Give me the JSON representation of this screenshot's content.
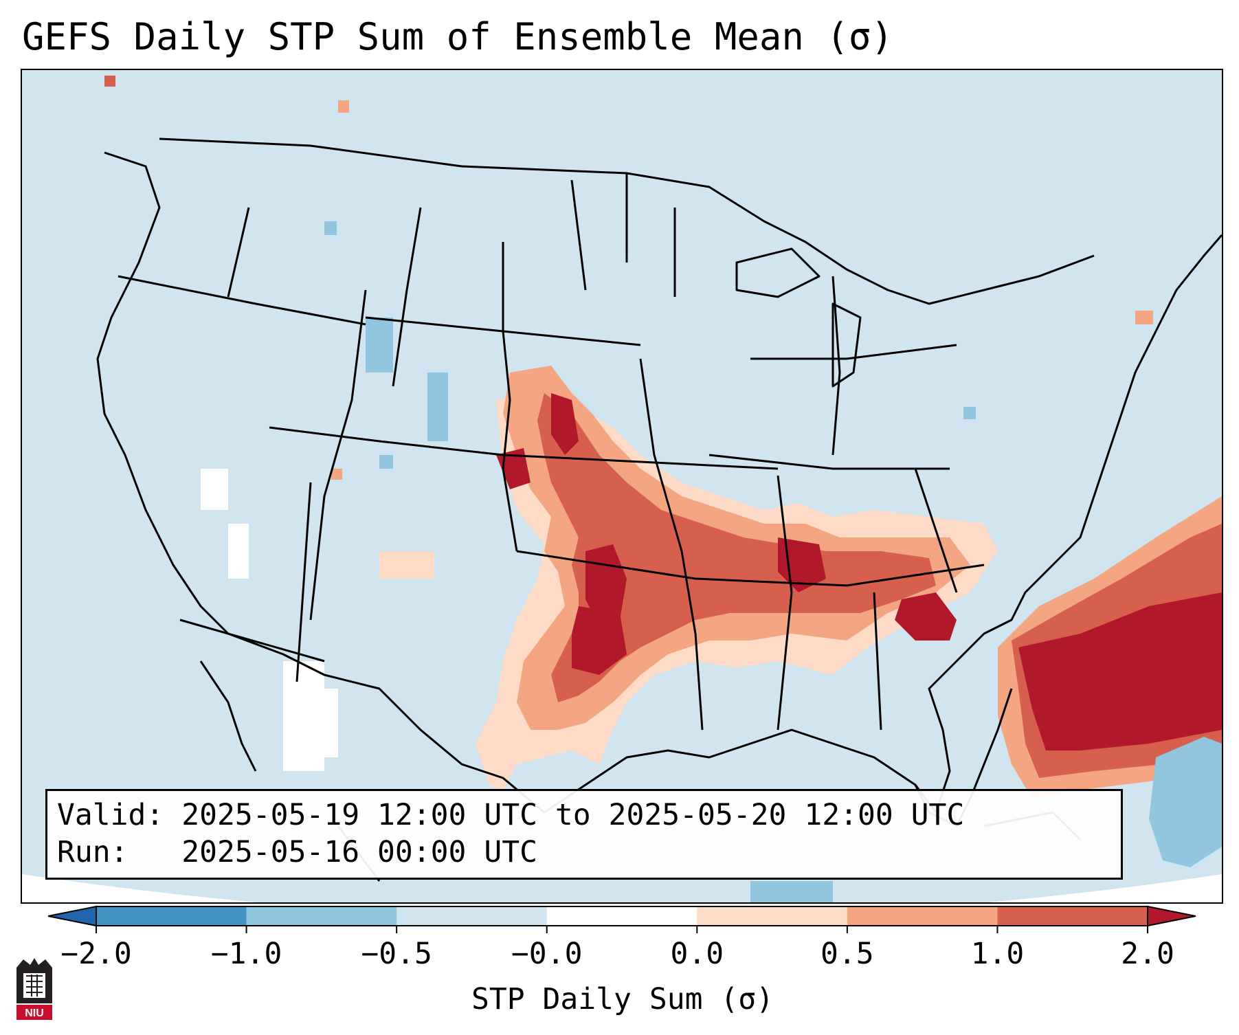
{
  "title": "GEFS Daily STP Sum of Ensemble Mean (σ)",
  "info": {
    "valid_label": "Valid:",
    "valid_value": "2025-05-19 12:00 UTC to 2025-05-20 12:00 UTC",
    "run_label": "Run:",
    "run_value": "2025-05-16 00:00 UTC"
  },
  "colorbar": {
    "label": "STP Daily Sum (σ)",
    "ticks": [
      "−2.0",
      "−1.0",
      "−0.5",
      "−0.0",
      "0.0",
      "0.5",
      "1.0",
      "2.0"
    ],
    "colors": {
      "under": "#2166ac",
      "bins": [
        "#4393c3",
        "#92c5de",
        "#d1e5f0",
        "#ffffff",
        "#fddbc7",
        "#f4a582",
        "#d6604d"
      ],
      "over": "#b2182b"
    }
  },
  "logo": {
    "text": "NIU",
    "color": "#c8102e"
  },
  "icons": [
    "niu-logo-icon"
  ]
}
